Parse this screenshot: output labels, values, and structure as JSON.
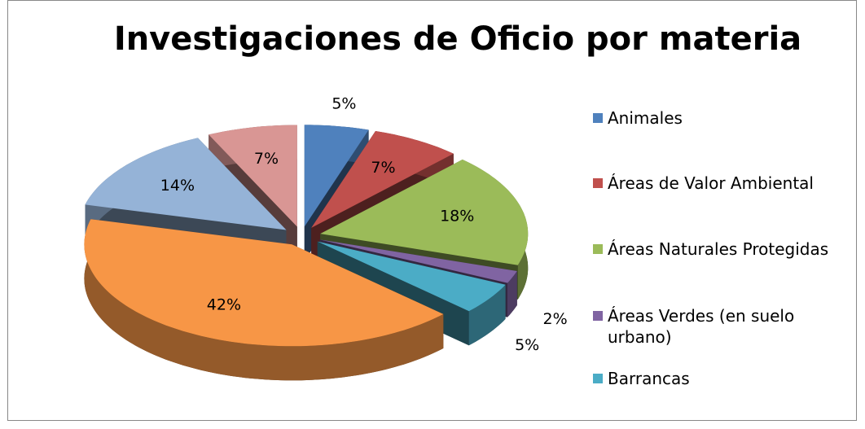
{
  "chart_data": {
    "type": "pie",
    "title": "Investigaciones de Oficio por materia",
    "categories": [
      "Animales",
      "Áreas de Valor Ambiental",
      "Áreas Naturales Protegidas",
      "Áreas Verdes (en suelo urbano)",
      "Barrancas",
      null,
      null,
      null
    ],
    "values": [
      5,
      7,
      18,
      2,
      5,
      42,
      14,
      7
    ],
    "value_labels": [
      "5%",
      "7%",
      "18%",
      "2%",
      "5%",
      "42%",
      "14%",
      "7%"
    ],
    "colors": [
      "#4f81bd",
      "#c0504d",
      "#9bbb59",
      "#8064a2",
      "#4bacc6",
      "#f79646",
      "#95b3d7",
      "#d99694"
    ],
    "legend": "right"
  }
}
